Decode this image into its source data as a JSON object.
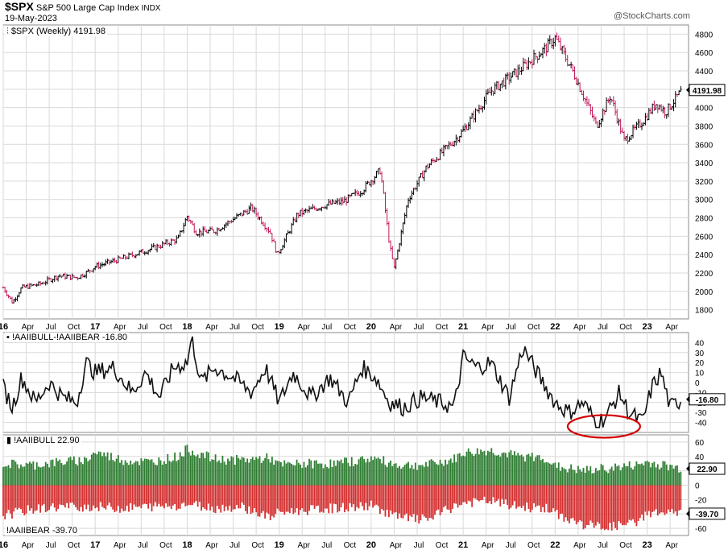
{
  "header": {
    "symbol": "$SPX",
    "name": "S&P 500 Large Cap Index",
    "exchange": "INDX",
    "date": "19-May-2023",
    "credit": "@StockCharts.com"
  },
  "panels": {
    "price_legend": "$SPX (Weekly) 4191.98",
    "spread_legend": "!AAIIBULL-!AAIIBEAR -16.80",
    "bull_legend": "!AAIIBULL 22.90",
    "bear_legend": "!AAIIBEAR -39.70"
  },
  "badges": {
    "price": "4191.98",
    "spread": "-16.80",
    "bull": "22.90",
    "bear": "-39.70"
  },
  "x_axis": {
    "labels": [
      "16",
      "Apr",
      "Jul",
      "Oct",
      "17",
      "Apr",
      "Jul",
      "Oct",
      "18",
      "Apr",
      "Jul",
      "Oct",
      "19",
      "Apr",
      "Jul",
      "Oct",
      "20",
      "Apr",
      "Jul",
      "Oct",
      "21",
      "Apr",
      "Jul",
      "Oct",
      "22",
      "Apr",
      "Jul",
      "Oct",
      "23",
      "Apr"
    ],
    "year_labels": [
      "16",
      "17",
      "18",
      "19",
      "20",
      "21",
      "22",
      "23"
    ]
  },
  "colors": {
    "up_bar": "#000000",
    "down_bar": "#c2185b",
    "bull_fill": "#2e7d32",
    "bear_fill": "#d32f2f",
    "highlight_ellipse": "#d40000",
    "grid": "#d9d9d9"
  },
  "chart_data": [
    {
      "type": "line",
      "title": "$SPX (Weekly) 4191.98",
      "style": "ohlc-bars",
      "x": [
        2016.0,
        2016.1,
        2016.2,
        2016.4,
        2016.6,
        2016.8,
        2016.9,
        2017.0,
        2017.3,
        2017.6,
        2017.9,
        2018.0,
        2018.1,
        2018.3,
        2018.7,
        2018.9,
        2018.98,
        2019.2,
        2019.5,
        2019.7,
        2019.9,
        2020.1,
        2020.2,
        2020.25,
        2020.4,
        2020.6,
        2020.9,
        2021.0,
        2021.3,
        2021.6,
        2021.9,
        2022.0,
        2022.2,
        2022.45,
        2022.6,
        2022.75,
        2022.95,
        2023.1,
        2023.2,
        2023.38
      ],
      "y": [
        2040,
        1880,
        2040,
        2080,
        2170,
        2150,
        2200,
        2270,
        2360,
        2460,
        2570,
        2820,
        2640,
        2660,
        2910,
        2650,
        2400,
        2840,
        2940,
        2980,
        3100,
        3320,
        2500,
        2250,
        3000,
        3350,
        3640,
        3750,
        4180,
        4400,
        4650,
        4760,
        4380,
        3800,
        4130,
        3640,
        3850,
        4050,
        3950,
        4191.98
      ],
      "ylim": [
        1700,
        4900
      ],
      "yticks": [
        1800,
        2000,
        2200,
        2400,
        2600,
        2800,
        3000,
        3200,
        3400,
        3600,
        3800,
        4000,
        4200,
        4400,
        4600,
        4800
      ]
    },
    {
      "type": "line",
      "title": "!AAIIBULL-!AAIIBEAR -16.80",
      "x": [
        2016.0,
        2016.1,
        2016.2,
        2016.35,
        2016.5,
        2016.65,
        2016.8,
        2016.9,
        2017.0,
        2017.2,
        2017.4,
        2017.55,
        2017.7,
        2017.85,
        2018.0,
        2018.05,
        2018.15,
        2018.3,
        2018.5,
        2018.7,
        2018.85,
        2019.0,
        2019.15,
        2019.35,
        2019.55,
        2019.75,
        2019.9,
        2020.05,
        2020.2,
        2020.35,
        2020.55,
        2020.75,
        2020.9,
        2021.0,
        2021.15,
        2021.3,
        2021.5,
        2021.65,
        2021.8,
        2022.0,
        2022.15,
        2022.3,
        2022.45,
        2022.55,
        2022.7,
        2022.8,
        2022.95,
        2023.05,
        2023.15,
        2023.25,
        2023.38
      ],
      "y": [
        -5,
        -25,
        5,
        -20,
        0,
        -15,
        -20,
        20,
        10,
        15,
        -10,
        10,
        -15,
        15,
        20,
        45,
        0,
        15,
        5,
        -10,
        15,
        -20,
        10,
        -15,
        5,
        -20,
        15,
        5,
        -20,
        -25,
        -15,
        -20,
        -25,
        25,
        15,
        20,
        -15,
        35,
        10,
        -20,
        -30,
        -20,
        -40,
        -35,
        -10,
        -30,
        -40,
        -5,
        10,
        -25,
        -16.8
      ],
      "ylim": [
        -50,
        50
      ],
      "yticks": [
        -40,
        -30,
        -20,
        -10,
        0,
        10,
        20,
        30,
        40
      ]
    },
    {
      "type": "bar",
      "title": "!AAIIBULL 22.90 / !AAIIBEAR -39.70",
      "series": [
        {
          "name": "!AAIIBULL",
          "x": [
            2016.0,
            2016.3,
            2016.6,
            2016.9,
            2017.0,
            2017.3,
            2017.6,
            2017.9,
            2018.0,
            2018.3,
            2018.6,
            2018.9,
            2019.0,
            2019.3,
            2019.6,
            2019.9,
            2020.0,
            2020.3,
            2020.6,
            2020.9,
            2021.0,
            2021.3,
            2021.6,
            2021.9,
            2022.0,
            2022.3,
            2022.6,
            2022.9,
            2023.0,
            2023.38
          ],
          "values": [
            30,
            28,
            32,
            35,
            46,
            35,
            32,
            40,
            50,
            36,
            35,
            38,
            28,
            30,
            30,
            35,
            38,
            28,
            28,
            36,
            45,
            48,
            40,
            38,
            26,
            20,
            24,
            28,
            32,
            22.9
          ]
        },
        {
          "name": "!AAIIBEAR",
          "x": [
            2016.0,
            2016.3,
            2016.6,
            2016.9,
            2017.0,
            2017.3,
            2017.6,
            2017.9,
            2018.0,
            2018.3,
            2018.6,
            2018.9,
            2019.0,
            2019.3,
            2019.6,
            2019.9,
            2020.0,
            2020.3,
            2020.6,
            2020.9,
            2021.0,
            2021.3,
            2021.6,
            2021.9,
            2022.0,
            2022.3,
            2022.6,
            2022.9,
            2023.0,
            2023.38
          ],
          "values": [
            -42,
            -34,
            -30,
            -30,
            -30,
            -32,
            -30,
            -28,
            -26,
            -32,
            -30,
            -45,
            -38,
            -35,
            -32,
            -30,
            -28,
            -45,
            -48,
            -30,
            -25,
            -22,
            -30,
            -32,
            -40,
            -55,
            -58,
            -52,
            -38,
            -39.7
          ]
        }
      ],
      "ylim": [
        -70,
        70
      ],
      "yticks": [
        -60,
        -40,
        -20,
        0,
        20,
        40,
        60
      ]
    }
  ]
}
